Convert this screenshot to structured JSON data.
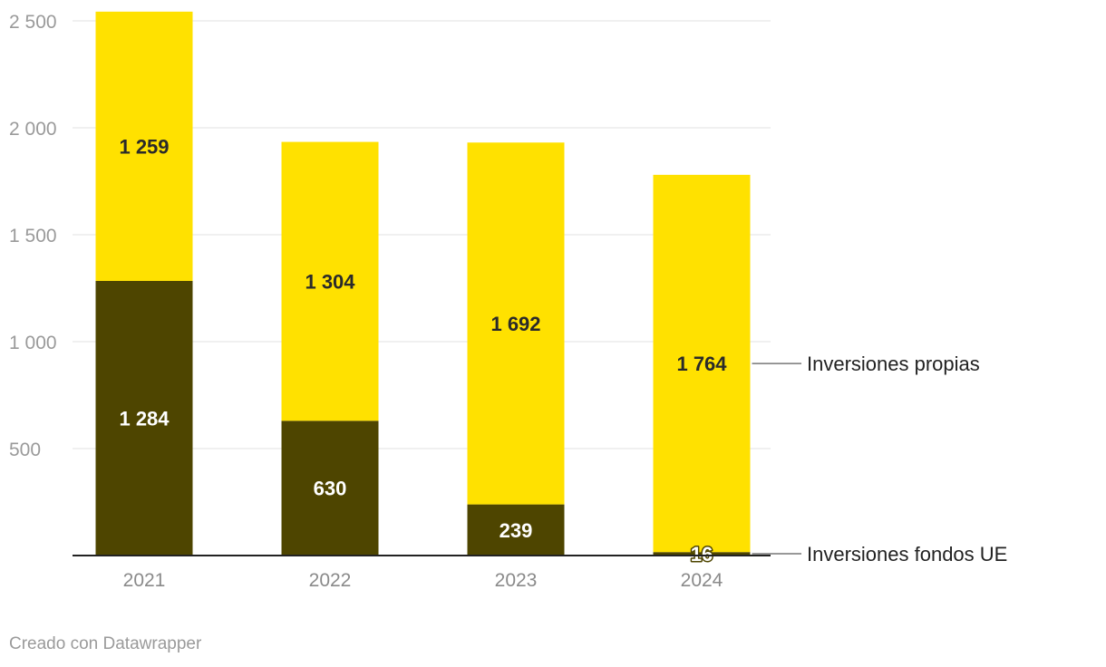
{
  "chart_data": {
    "type": "bar",
    "stacked": true,
    "categories": [
      "2021",
      "2022",
      "2023",
      "2024"
    ],
    "series": [
      {
        "name": "Inversiones fondos UE",
        "values": [
          1284,
          630,
          239,
          16
        ],
        "labels": [
          "1 284",
          "630",
          "239",
          "16"
        ],
        "color": "#4e4500"
      },
      {
        "name": "Inversiones propias",
        "values": [
          1259,
          1304,
          1692,
          1764
        ],
        "labels": [
          "1 259",
          "1 304",
          "1 692",
          "1 764"
        ],
        "color": "#ffe100"
      }
    ],
    "ylim": [
      0,
      2500
    ],
    "yticks": [
      {
        "value": 500,
        "label": "500"
      },
      {
        "value": 1000,
        "label": "1 000"
      },
      {
        "value": 1500,
        "label": "1 500"
      },
      {
        "value": 2000,
        "label": "2 000"
      },
      {
        "value": 2500,
        "label": "2 500"
      }
    ],
    "grid": true,
    "legend": "right, inline labels",
    "xlabel": "",
    "ylabel": ""
  },
  "credit": "Creado con Datawrapper"
}
